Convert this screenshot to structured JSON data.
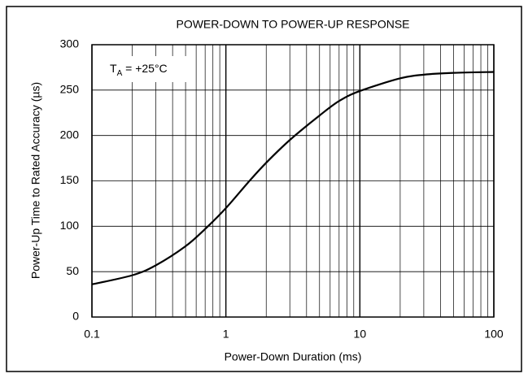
{
  "chart_data": {
    "type": "line",
    "title": "POWER-DOWN TO POWER-UP RESPONSE",
    "xlabel": "Power-Down Duration (ms)",
    "ylabel": "Power-Up Time to Rated Accuracy (µs)",
    "annotation": {
      "main": "T",
      "sub": "A",
      "rest": " = +25°C"
    },
    "x": [
      0.1,
      0.2,
      0.3,
      0.5,
      0.7,
      1,
      1.5,
      2,
      3,
      5,
      7,
      10,
      20,
      30,
      50,
      100
    ],
    "series": [
      {
        "name": null,
        "color": "#000000",
        "values": [
          36,
          46,
          57,
          78,
          97,
          120,
          150,
          170,
          195,
          222,
          238,
          249,
          263,
          267,
          269,
          270
        ]
      }
    ],
    "xscale": "log",
    "xlim": [
      0.1,
      100
    ],
    "xticks": [
      0.1,
      1,
      10,
      100
    ],
    "xminor": [
      0.2,
      0.3,
      0.4,
      0.5,
      0.6,
      0.7,
      0.8,
      0.9,
      2,
      3,
      4,
      5,
      6,
      7,
      8,
      9,
      20,
      30,
      40,
      50,
      60,
      70,
      80,
      90
    ],
    "ylim": [
      0,
      300
    ],
    "yticks": [
      0,
      50,
      100,
      150,
      200,
      250,
      300
    ],
    "grid": true
  }
}
